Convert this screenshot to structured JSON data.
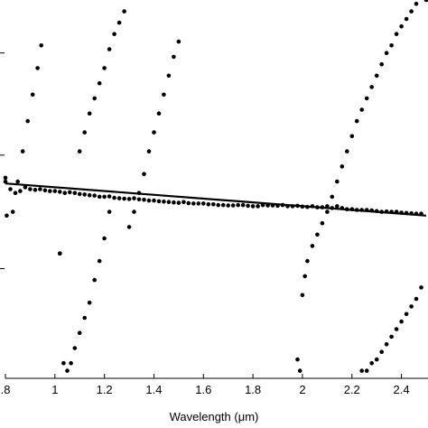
{
  "chart_data": {
    "type": "scatter",
    "title": "",
    "xlabel": "Wavelength (μm)",
    "ylabel": "",
    "xlim": [
      0.8,
      2.5
    ],
    "ylim": [
      0,
      1
    ],
    "xticks": [
      0.8,
      1.0,
      1.2,
      1.4,
      1.6,
      1.8,
      2.0,
      2.2,
      2.4
    ],
    "xtick_labels": [
      ".8",
      "1",
      "1.2",
      "1.4",
      "1.6",
      "1.8",
      "2",
      "2.2",
      "2.4"
    ],
    "yticks": [
      0.29,
      0.59,
      0.86
    ],
    "grid": false,
    "colors": {
      "points": "#000000",
      "line": "#000000",
      "axes": "#000000"
    },
    "series": [
      {
        "kind": "line",
        "x": [
          0.8,
          2.5
        ],
        "y": [
          0.515,
          0.43
        ]
      },
      {
        "kind": "points",
        "x": [
          0.8,
          0.82,
          0.84,
          0.86,
          0.88,
          0.9,
          0.92,
          0.94,
          0.96,
          0.98,
          1.0,
          1.02,
          1.04,
          1.06,
          1.08,
          1.1,
          1.12,
          1.14,
          1.16,
          1.18,
          1.2,
          1.22,
          1.24,
          1.26,
          1.28,
          1.3,
          1.32,
          1.34,
          1.36,
          1.38,
          1.4,
          1.42,
          1.44,
          1.46,
          1.48,
          1.5,
          1.52,
          1.54,
          1.56,
          1.58,
          1.6,
          1.62,
          1.64,
          1.66,
          1.68,
          1.7,
          1.72,
          1.74,
          1.76,
          1.78,
          1.8,
          1.82,
          1.84,
          1.86,
          1.88,
          1.9,
          1.92,
          1.94,
          1.96,
          1.98,
          2.0,
          2.02,
          2.04,
          2.06,
          2.08,
          2.1,
          2.12,
          2.14,
          2.16,
          2.18,
          2.2,
          2.22,
          2.24,
          2.26,
          2.28,
          2.3,
          2.32,
          2.34,
          2.36,
          2.38,
          2.4,
          2.42,
          2.44,
          2.46,
          2.48
        ],
        "y": [
          0.52,
          0.5,
          0.49,
          0.495,
          0.505,
          0.5,
          0.498,
          0.5,
          0.497,
          0.495,
          0.495,
          0.493,
          0.49,
          0.492,
          0.49,
          0.487,
          0.486,
          0.484,
          0.483,
          0.48,
          0.48,
          0.481,
          0.477,
          0.476,
          0.475,
          0.474,
          0.476,
          0.473,
          0.472,
          0.47,
          0.47,
          0.468,
          0.467,
          0.466,
          0.465,
          0.464,
          0.466,
          0.463,
          0.462,
          0.462,
          0.462,
          0.46,
          0.46,
          0.458,
          0.458,
          0.457,
          0.457,
          0.458,
          0.458,
          0.456,
          0.455,
          0.455,
          0.458,
          0.457,
          0.457,
          0.456,
          0.458,
          0.455,
          0.455,
          0.456,
          0.454,
          0.453,
          0.455,
          0.452,
          0.452,
          0.455,
          0.45,
          0.455,
          0.45,
          0.447,
          0.447,
          0.445,
          0.445,
          0.445,
          0.444,
          0.442,
          0.44,
          0.441,
          0.44,
          0.44,
          0.438,
          0.437,
          0.436,
          0.435,
          0.435
        ]
      },
      {
        "kind": "points",
        "x": [
          0.8,
          0.805,
          0.83,
          0.85,
          0.87,
          0.89,
          0.91,
          0.93,
          0.945
        ],
        "y": [
          0.53,
          0.43,
          0.44,
          0.52,
          0.6,
          0.68,
          0.75,
          0.82,
          0.88
        ]
      },
      {
        "kind": "points",
        "x": [
          1.02,
          1.035,
          1.05,
          1.065,
          1.08,
          1.1,
          1.12,
          1.14,
          1.16,
          1.18,
          1.2,
          1.22
        ],
        "y": [
          0.33,
          0.04,
          0.02,
          0.04,
          0.08,
          0.12,
          0.16,
          0.2,
          0.26,
          0.31,
          0.37,
          0.44
        ]
      },
      {
        "kind": "points",
        "x": [
          1.02,
          1.1,
          1.12,
          1.14,
          1.16,
          1.18,
          1.2,
          1.22,
          1.24,
          1.26,
          1.28,
          1.3,
          1.32,
          1.34,
          1.36,
          1.38,
          1.4,
          1.42,
          1.44,
          1.46,
          1.48,
          1.5
        ],
        "y": [
          0.33,
          0.6,
          0.65,
          0.7,
          0.74,
          0.78,
          0.82,
          0.87,
          0.91,
          0.94,
          0.97,
          0.4,
          0.44,
          0.49,
          0.54,
          0.6,
          0.65,
          0.7,
          0.75,
          0.8,
          0.85,
          0.89
        ]
      },
      {
        "kind": "points",
        "x": [
          1.98,
          1.99,
          2.0,
          2.01,
          2.02,
          2.04,
          2.06,
          2.08,
          2.1,
          2.12,
          2.14,
          2.16,
          2.18,
          2.2,
          2.22,
          2.24,
          2.26,
          2.28,
          2.3,
          2.32,
          2.34,
          2.36,
          2.38,
          2.4,
          2.42,
          2.44,
          2.46,
          2.48,
          2.5
        ],
        "y": [
          0.05,
          0.02,
          0.22,
          0.27,
          0.31,
          0.35,
          0.38,
          0.41,
          0.44,
          0.48,
          0.52,
          0.56,
          0.6,
          0.64,
          0.68,
          0.71,
          0.74,
          0.77,
          0.8,
          0.83,
          0.86,
          0.88,
          0.91,
          0.93,
          0.95,
          0.97,
          0.99,
          1.01,
          1.0
        ]
      },
      {
        "kind": "points",
        "x": [
          2.24,
          2.26,
          2.28,
          2.3,
          2.32,
          2.34,
          2.36,
          2.38,
          2.4,
          2.42,
          2.44,
          2.46,
          2.48
        ],
        "y": [
          0.02,
          0.02,
          0.04,
          0.05,
          0.07,
          0.09,
          0.11,
          0.13,
          0.15,
          0.17,
          0.19,
          0.21,
          0.24
        ]
      }
    ]
  }
}
